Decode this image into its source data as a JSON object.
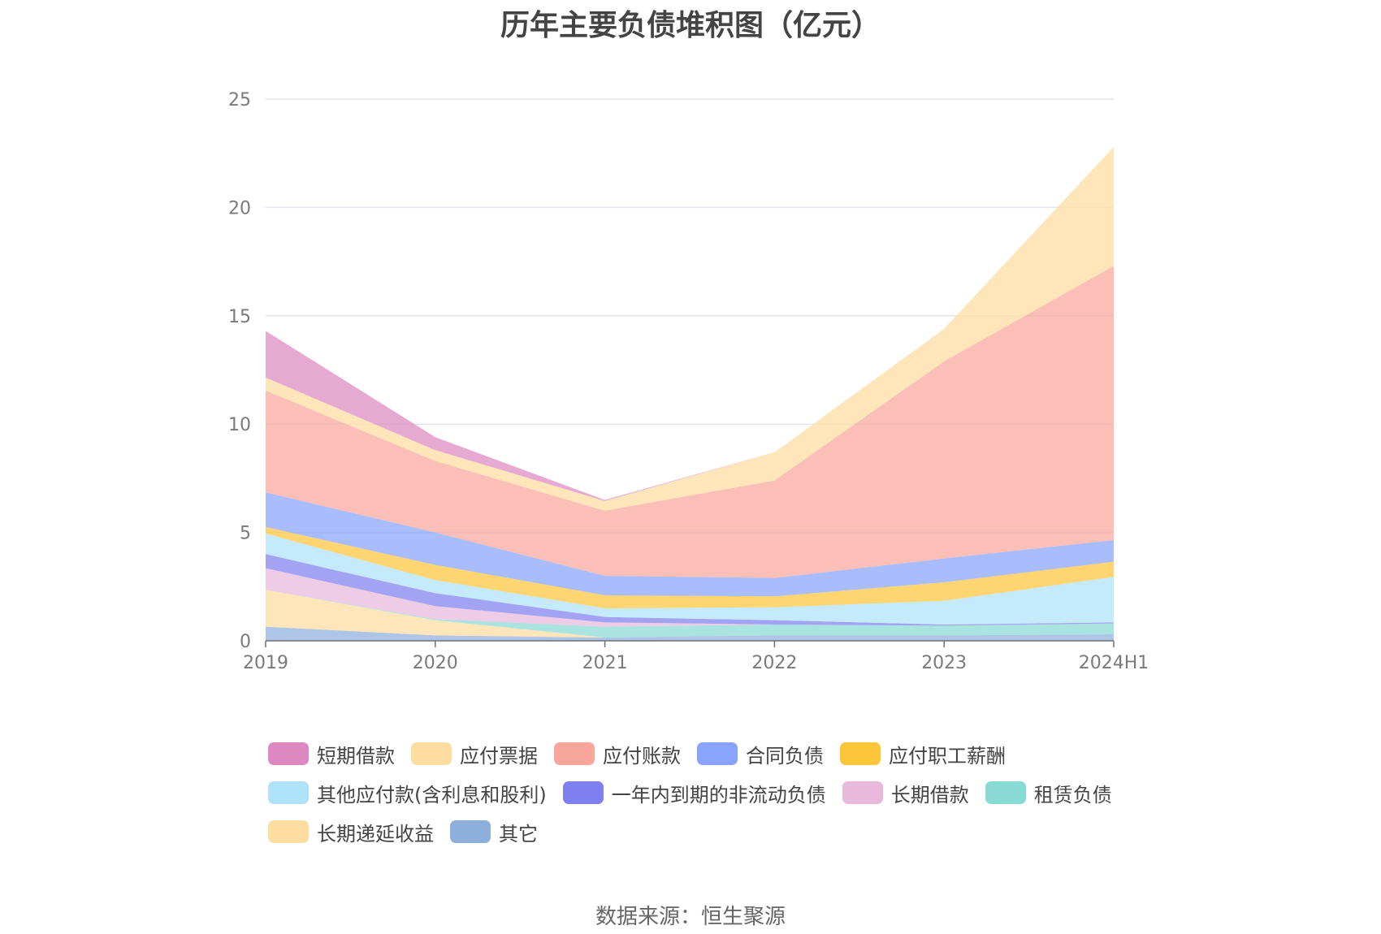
{
  "chart_data": {
    "type": "area",
    "stacked": true,
    "title": "历年主要负债堆积图（亿元）",
    "xlabel": "",
    "ylabel": "",
    "categories": [
      "2019",
      "2020",
      "2021",
      "2022",
      "2023",
      "2024H1"
    ],
    "ylim": [
      0,
      25
    ],
    "yticks": [
      0,
      5,
      10,
      15,
      20,
      25
    ],
    "grid": true,
    "legend_position": "bottom",
    "series": [
      {
        "name": "其它",
        "color": "#8eaedc",
        "values": [
          0.65,
          0.25,
          0.15,
          0.25,
          0.25,
          0.3
        ]
      },
      {
        "name": "长期递延收益",
        "color": "#ffdca0",
        "values": [
          1.7,
          0.7,
          0.0,
          0.0,
          0.0,
          0.0
        ]
      },
      {
        "name": "租赁负债",
        "color": "#88dad5",
        "values": [
          0.0,
          0.05,
          0.5,
          0.5,
          0.45,
          0.5
        ]
      },
      {
        "name": "长期借款",
        "color": "#e8b9db",
        "values": [
          1.0,
          0.6,
          0.2,
          0.0,
          0.0,
          0.0
        ]
      },
      {
        "name": "一年内到期的非流动负债",
        "color": "#7f80f0",
        "values": [
          0.65,
          0.6,
          0.25,
          0.2,
          0.05,
          0.05
        ]
      },
      {
        "name": "其他应付款(含利息和股利)",
        "color": "#aee2fa",
        "values": [
          0.95,
          0.6,
          0.4,
          0.6,
          1.1,
          2.1
        ]
      },
      {
        "name": "应付职工薪酬",
        "color": "#fdc53a",
        "values": [
          0.3,
          0.7,
          0.6,
          0.5,
          0.85,
          0.7
        ]
      },
      {
        "name": "合同负债",
        "color": "#88a4fb",
        "values": [
          1.6,
          1.5,
          0.9,
          0.85,
          1.1,
          1.0
        ]
      },
      {
        "name": "应付账款",
        "color": "#f9a69d",
        "values": [
          4.7,
          3.3,
          3.0,
          4.5,
          9.1,
          12.65
        ]
      },
      {
        "name": "应付票据",
        "color": "#ffdca0",
        "values": [
          0.6,
          0.5,
          0.45,
          1.3,
          1.5,
          5.5
        ]
      },
      {
        "name": "短期借款",
        "color": "#dd88c1",
        "values": [
          2.15,
          0.6,
          0.05,
          0.0,
          0.0,
          0.0
        ]
      }
    ],
    "legend_order": [
      "短期借款",
      "应付票据",
      "应付账款",
      "合同负债",
      "应付职工薪酬",
      "其他应付款(含利息和股利)",
      "一年内到期的非流动负债",
      "长期借款",
      "租赁负债",
      "长期递延收益",
      "其它"
    ]
  },
  "source_text": "数据来源：恒生聚源"
}
